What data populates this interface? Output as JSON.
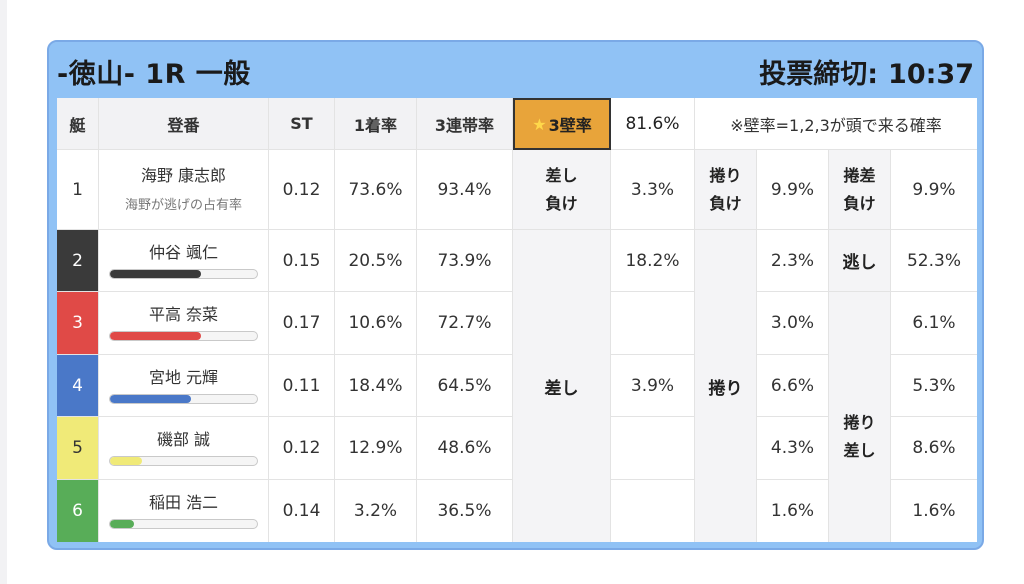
{
  "race": {
    "title": "-徳山- 1R 一般",
    "deadline_label": "投票締切:",
    "deadline_time": "10:37"
  },
  "headers": {
    "waku": "艇",
    "player": "登番",
    "st": "ST",
    "win1": "1着率",
    "ren3": "3連帯率",
    "kabe_star": "★",
    "kabe_label": "3壁率",
    "kabe_value": "81.6%",
    "note": "※壁率=1,2,3が頭で来る確率"
  },
  "rows": [
    {
      "no": "1",
      "name": "海野 康志郎",
      "sub": "海野が逃げの占有率",
      "st": "0.12",
      "win1": "73.6%",
      "ren3": "93.4%"
    },
    {
      "no": "2",
      "name": "仲谷 颯仁",
      "bar": 0.62,
      "st": "0.15",
      "win1": "20.5%",
      "ren3": "73.9%"
    },
    {
      "no": "3",
      "name": "平高 奈菜",
      "bar": 0.62,
      "st": "0.17",
      "win1": "10.6%",
      "ren3": "72.7%"
    },
    {
      "no": "4",
      "name": "宮地 元輝",
      "bar": 0.55,
      "st": "0.11",
      "win1": "18.4%",
      "ren3": "64.5%"
    },
    {
      "no": "5",
      "name": "磯部 誠",
      "bar": 0.22,
      "st": "0.12",
      "win1": "12.9%",
      "ren3": "48.6%"
    },
    {
      "no": "6",
      "name": "稲田 浩二",
      "bar": 0.16,
      "st": "0.14",
      "win1": "3.2%",
      "ren3": "36.5%"
    }
  ],
  "bar_colors": [
    "#3a3a3a",
    "#e04a47",
    "#4a78c8",
    "#f0ea78",
    "#58ad58"
  ],
  "patterns": {
    "sashi_make_1": "差し",
    "sashi_make_2": "負け",
    "sashi_make_val": "3.3%",
    "sashi": "差し",
    "sashi_row2_val": "18.2%",
    "sashi_val": "3.9%",
    "makuri_make_1": "捲り",
    "makuri_make_2": "負け",
    "makuri_make_val": "9.9%",
    "makuri": "捲り",
    "makuri_vals": [
      "2.3%",
      "3.0%",
      "6.6%",
      "4.3%",
      "1.6%"
    ],
    "makurisashi_make_1": "捲差",
    "makurisashi_make_2": "負け",
    "makurisashi_make_val": "9.9%",
    "nige": "逃し",
    "nige_val": "52.3%",
    "makurisashi_1": "捲り",
    "makurisashi_2": "差し",
    "makurisashi_vals": [
      "6.1%",
      "5.3%",
      "8.6%",
      "1.6%"
    ]
  }
}
